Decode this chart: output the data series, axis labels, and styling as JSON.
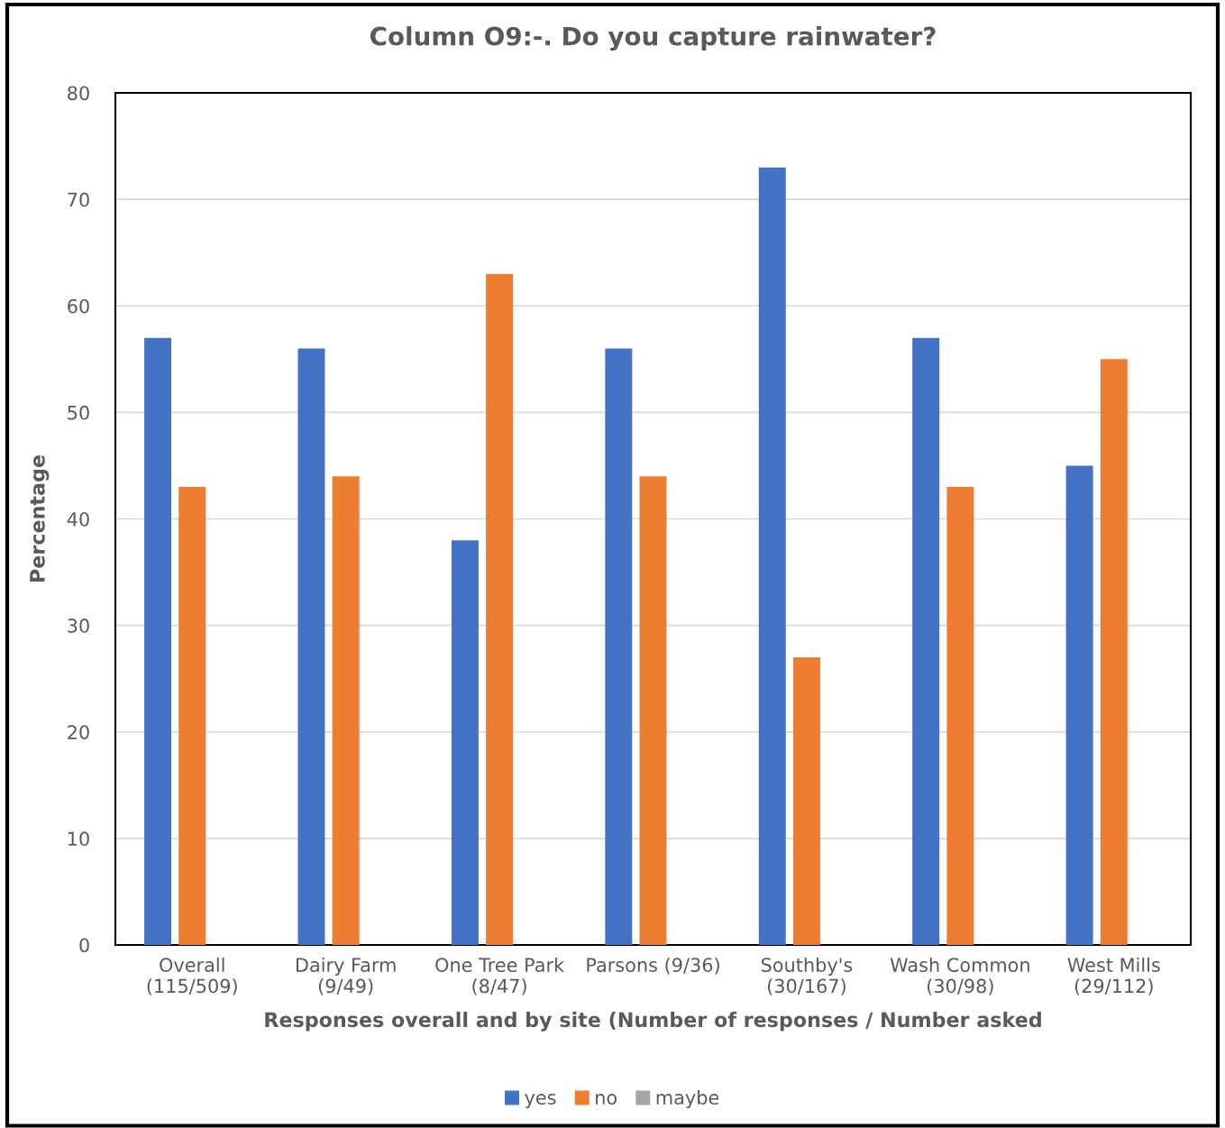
{
  "chart_data": {
    "type": "bar",
    "title": "Column O9:-. Do you capture rainwater?",
    "xlabel": "Responses overall and by site (Number of responses / Number asked",
    "ylabel": "Percentage",
    "categories": [
      "Overall\n(115/509)",
      "Dairy Farm\n(9/49)",
      "One Tree Park\n(8/47)",
      "Parsons (9/36)",
      "Southby's\n(30/167)",
      "Wash Common\n(30/98)",
      "West Mills\n(29/112)"
    ],
    "series": [
      {
        "name": "yes",
        "color": "#4472c4",
        "values": [
          57,
          56,
          38,
          56,
          73,
          57,
          45
        ]
      },
      {
        "name": "no",
        "color": "#ed7d31",
        "values": [
          43,
          44,
          63,
          44,
          27,
          43,
          55
        ]
      },
      {
        "name": "maybe",
        "color": "#a5a5a5",
        "values": [
          0,
          0,
          0,
          0,
          0,
          0,
          0
        ]
      }
    ],
    "ylim": [
      0,
      80
    ],
    "yticks": [
      0,
      10,
      20,
      30,
      40,
      50,
      60,
      70,
      80
    ],
    "grid": "y",
    "legend": "bottom"
  }
}
